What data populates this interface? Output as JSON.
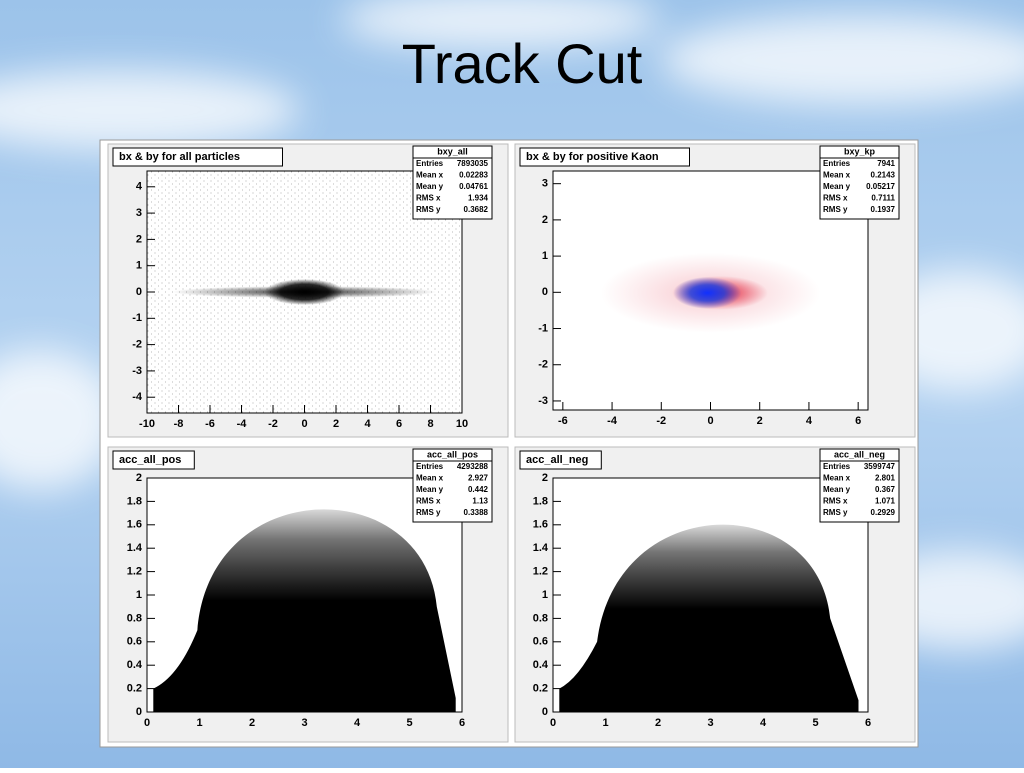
{
  "title": "Track Cut",
  "panels": [
    {
      "title": "bx & by for all particles",
      "stats": {
        "name": "bxy_all",
        "rows": [
          [
            "Entries",
            "7893035"
          ],
          [
            "Mean x",
            "0.02283"
          ],
          [
            "Mean y",
            "0.04761"
          ],
          [
            "RMS x",
            "1.934"
          ],
          [
            "RMS y",
            "0.3682"
          ]
        ]
      },
      "xlim": [
        -10,
        10
      ],
      "xticks": [
        -10,
        -8,
        -6,
        -4,
        -2,
        0,
        2,
        4,
        6,
        8,
        10
      ],
      "ylim": [
        -4.6,
        4.6
      ],
      "yticks": [
        -4,
        -3,
        -2,
        -1,
        0,
        1,
        2,
        3,
        4
      ]
    },
    {
      "title": "bx & by for positive Kaon",
      "stats": {
        "name": "bxy_kp",
        "rows": [
          [
            "Entries",
            "7941"
          ],
          [
            "Mean x",
            "0.2143"
          ],
          [
            "Mean y",
            "0.05217"
          ],
          [
            "RMS x",
            "0.7111"
          ],
          [
            "RMS y",
            "0.1937"
          ]
        ]
      },
      "xlim": [
        -6.4,
        6.4
      ],
      "xticks": [
        -6,
        -4,
        -2,
        0,
        2,
        4,
        6
      ],
      "ylim": [
        -3.25,
        3.35
      ],
      "yticks": [
        -3,
        -2,
        -1,
        0,
        1,
        2,
        3
      ]
    },
    {
      "title": "acc_all_pos",
      "stats": {
        "name": "acc_all_pos",
        "rows": [
          [
            "Entries",
            "4293288"
          ],
          [
            "Mean x",
            "2.927"
          ],
          [
            "Mean y",
            "0.442"
          ],
          [
            "RMS x",
            "1.13"
          ],
          [
            "RMS y",
            "0.3388"
          ]
        ]
      },
      "xlim": [
        0,
        6
      ],
      "xticks": [
        0,
        1,
        2,
        3,
        4,
        5,
        6
      ],
      "ylim": [
        0,
        2
      ],
      "yticks": [
        0,
        0.2,
        0.4,
        0.6,
        0.8,
        1,
        1.2,
        1.4,
        1.6,
        1.8,
        2
      ]
    },
    {
      "title": "acc_all_neg",
      "stats": {
        "name": "acc_all_neg",
        "rows": [
          [
            "Entries",
            "3599747"
          ],
          [
            "Mean x",
            "2.801"
          ],
          [
            "Mean y",
            "0.367"
          ],
          [
            "RMS x",
            "1.071"
          ],
          [
            "RMS y",
            "0.2929"
          ]
        ]
      },
      "xlim": [
        0,
        6
      ],
      "xticks": [
        0,
        1,
        2,
        3,
        4,
        5,
        6
      ],
      "ylim": [
        0,
        2
      ],
      "yticks": [
        0,
        0.2,
        0.4,
        0.6,
        0.8,
        1,
        1.2,
        1.4,
        1.6,
        1.8,
        2
      ]
    }
  ]
}
